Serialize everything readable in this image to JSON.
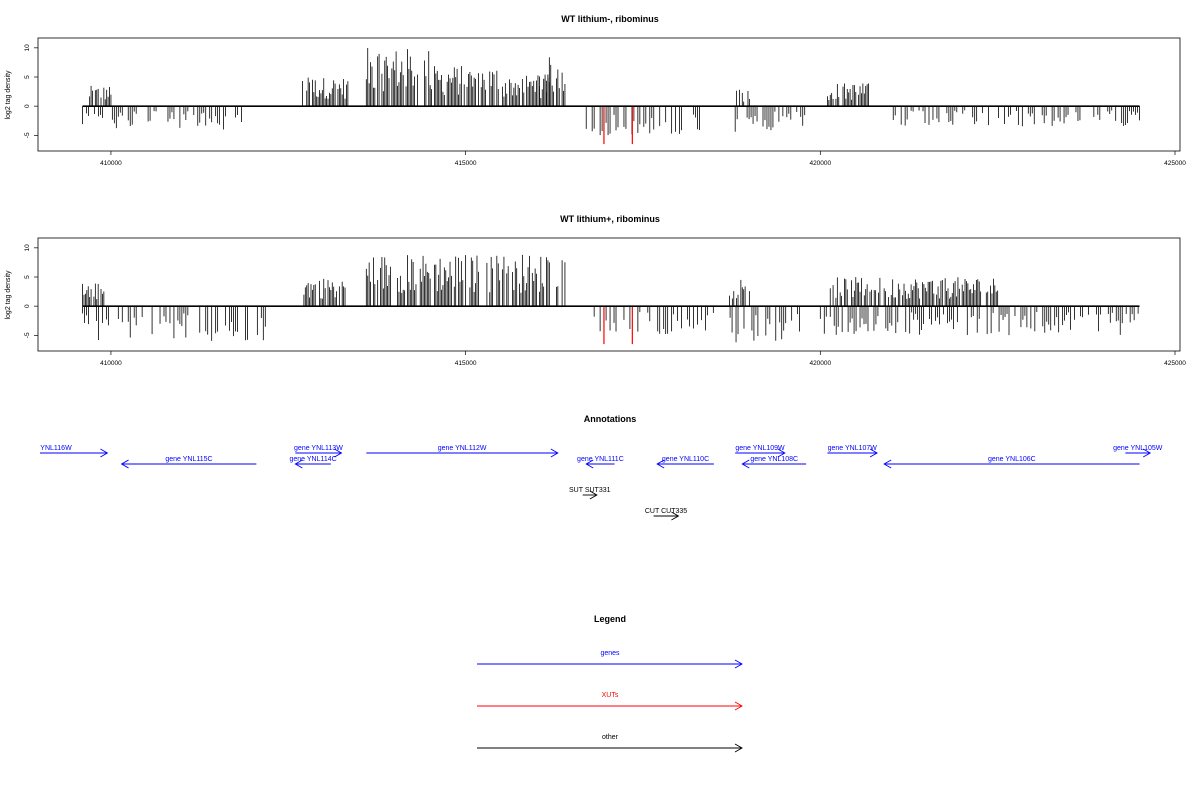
{
  "chart_data": [
    {
      "type": "bar",
      "title": "WT lithium-, ribominus",
      "ylabel": "log2 tag density",
      "xlim": [
        409000,
        425000
      ],
      "ylim": [
        -7,
        11
      ],
      "xticks": [
        "410000",
        "415000",
        "420000",
        "425000"
      ],
      "yticks": [
        "10",
        "5",
        "0",
        "-5"
      ],
      "coverage_x_range": [
        409600,
        424500
      ],
      "positive_strand_peaks": [
        {
          "from": 409700,
          "to": 410000,
          "max": 3.5
        },
        {
          "from": 412700,
          "to": 413350,
          "max": 5
        },
        {
          "from": 413600,
          "to": 414500,
          "max": 10
        },
        {
          "from": 414500,
          "to": 415500,
          "max": 7
        },
        {
          "from": 415500,
          "to": 416200,
          "max": 5.5
        },
        {
          "from": 416000,
          "to": 416450,
          "max": 8.5
        },
        {
          "from": 418800,
          "to": 419000,
          "max": 3
        },
        {
          "from": 420100,
          "to": 420700,
          "max": 4
        }
      ],
      "negative_strand_peaks": [
        {
          "from": 409600,
          "to": 412000,
          "min": -4
        },
        {
          "from": 416700,
          "to": 418300,
          "min": -5
        },
        {
          "from": 418800,
          "to": 419800,
          "min": -4.5
        },
        {
          "from": 421000,
          "to": 424500,
          "min": -3.5
        }
      ],
      "highlighted_xut_bars": [
        {
          "x": 416950,
          "y": -6.5
        },
        {
          "x": 417350,
          "y": -6.5
        }
      ]
    },
    {
      "type": "bar",
      "title": "WT lithium+, ribominus",
      "ylabel": "log2 tag density",
      "xlim": [
        409000,
        425000
      ],
      "ylim": [
        -7,
        11
      ],
      "xticks": [
        "410000",
        "415000",
        "420000",
        "425000"
      ],
      "yticks": [
        "10",
        "5",
        "0",
        "-5"
      ],
      "coverage_x_range": [
        409600,
        424500
      ],
      "positive_strand_peaks": [
        {
          "from": 409600,
          "to": 409950,
          "max": 4
        },
        {
          "from": 412700,
          "to": 413300,
          "max": 5
        },
        {
          "from": 413600,
          "to": 416400,
          "max": 9
        },
        {
          "from": 418700,
          "to": 419000,
          "max": 5
        },
        {
          "from": 420100,
          "to": 422500,
          "max": 5
        }
      ],
      "negative_strand_peaks": [
        {
          "from": 409600,
          "to": 412200,
          "min": -6
        },
        {
          "from": 416700,
          "to": 418500,
          "min": -5
        },
        {
          "from": 418700,
          "to": 419800,
          "min": -6.5
        },
        {
          "from": 420000,
          "to": 424500,
          "min": -5
        }
      ],
      "highlighted_xut_bars": [
        {
          "x": 416950,
          "y": -6.5
        },
        {
          "x": 417350,
          "y": -6.5
        }
      ]
    }
  ],
  "annotations": {
    "title": "Annotations",
    "features": [
      {
        "label": "YNL116W",
        "start": 409000,
        "end": 409950,
        "strand": "+",
        "row": 0,
        "color": "#0000ff",
        "label_offset": 409200
      },
      {
        "label": "gene YNL115C",
        "start": 410150,
        "end": 412050,
        "strand": "-",
        "row": 1,
        "color": "#0000ff"
      },
      {
        "label": "gene YNL113W",
        "start": 412600,
        "end": 413250,
        "strand": "+",
        "row": 0,
        "color": "#0000ff"
      },
      {
        "label": "gene YNL114C",
        "start": 412600,
        "end": 413100,
        "strand": "-",
        "row": 1,
        "color": "#0000ff"
      },
      {
        "label": "gene YNL112W",
        "start": 413600,
        "end": 416300,
        "strand": "+",
        "row": 0,
        "color": "#0000ff"
      },
      {
        "label": "gene YNL111C",
        "start": 416700,
        "end": 417100,
        "strand": "-",
        "row": 1,
        "color": "#0000ff"
      },
      {
        "label": "gene YNL110C",
        "start": 417700,
        "end": 418500,
        "strand": "-",
        "row": 1,
        "color": "#0000ff"
      },
      {
        "label": "gene YNL109W",
        "start": 418800,
        "end": 419500,
        "strand": "+",
        "row": 0,
        "color": "#0000ff"
      },
      {
        "label": "gene YNL108C",
        "start": 418900,
        "end": 419800,
        "strand": "-",
        "row": 1,
        "color": "#0000ff"
      },
      {
        "label": "gene YNL107W",
        "start": 420100,
        "end": 420800,
        "strand": "+",
        "row": 0,
        "color": "#0000ff"
      },
      {
        "label": "gene YNL106C",
        "start": 420900,
        "end": 424500,
        "strand": "-",
        "row": 1,
        "color": "#0000ff"
      },
      {
        "label": "gene YNL105W",
        "start": 424300,
        "end": 424650,
        "strand": "+",
        "row": 0,
        "color": "#0000ff"
      },
      {
        "label": "SUT SUT331",
        "start": 416650,
        "end": 416850,
        "strand": "+",
        "row": 3,
        "color": "#000000"
      },
      {
        "label": "CUT CUT335",
        "start": 417650,
        "end": 418000,
        "strand": "+",
        "row": 5,
        "color": "#000000"
      }
    ]
  },
  "legend": {
    "title": "Legend",
    "items": [
      {
        "label": "genes",
        "color": "#0000ff"
      },
      {
        "label": "XUTs",
        "color": "#ff0000"
      },
      {
        "label": "other",
        "color": "#000000"
      }
    ]
  }
}
